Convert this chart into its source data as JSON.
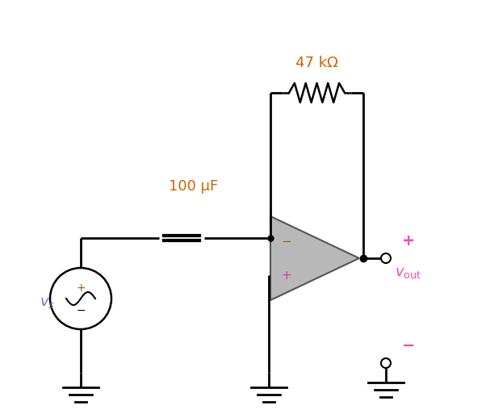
{
  "bg_color": "#ffffff",
  "wire_color": "#000000",
  "resistor_color": "#000000",
  "label_47k_text": "47 kΩ",
  "label_47k_color": "#cc6600",
  "label_100uF_text": "100 μF",
  "label_100uF_color": "#cc6600",
  "label_vs_text": "$v_s$",
  "label_vs_color": "#7777cc",
  "label_vout_text": "$v_{\\mathrm{out}}$",
  "label_vout_color": "#ff44aa",
  "label_plus_color": "#ff44aa",
  "label_minus_color": "#ff44aa",
  "opamp_face_color": "#b0b0b0",
  "opamp_edge_color": "#444444",
  "opamp_minus_color": "#886600",
  "opamp_plus_color": "#cc4488",
  "ground_color": "#000000"
}
